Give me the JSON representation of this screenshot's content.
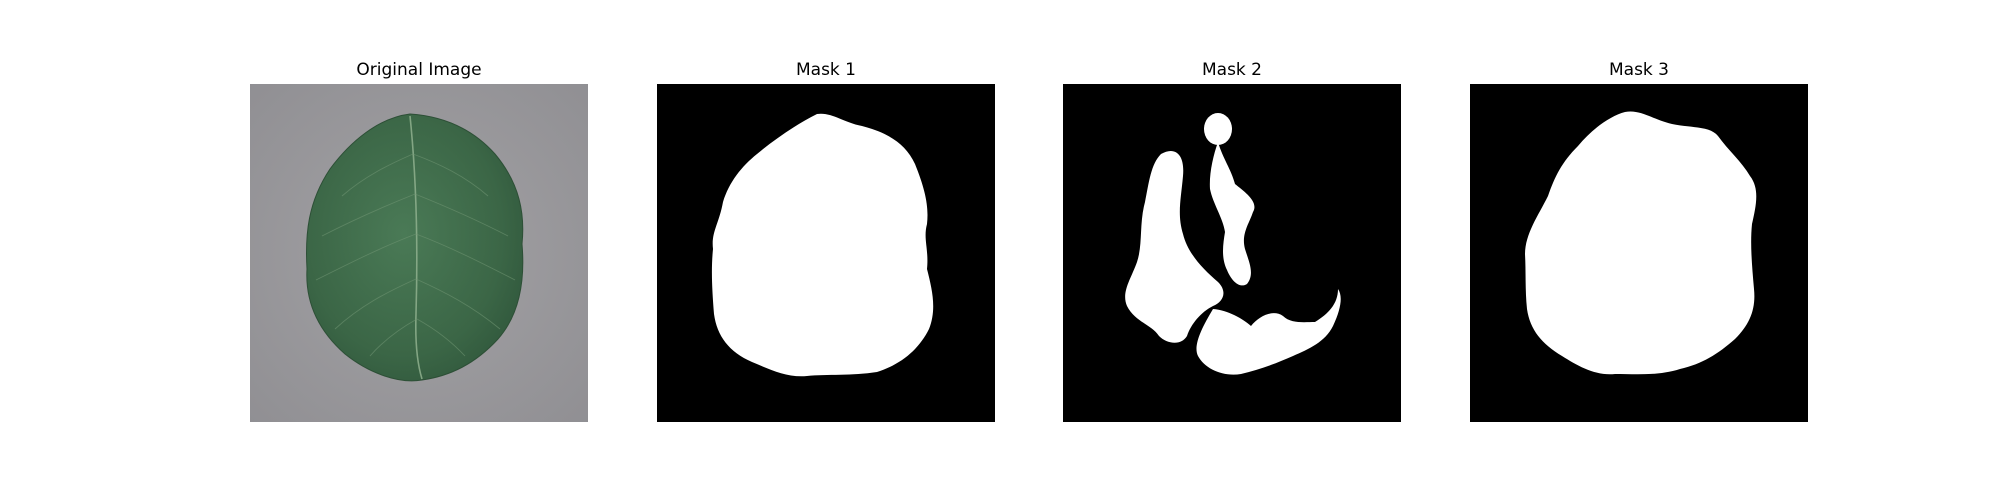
{
  "figure": {
    "panels": [
      {
        "title": "Original Image"
      },
      {
        "title": "Mask 1"
      },
      {
        "title": "Mask 2"
      },
      {
        "title": "Mask 3"
      }
    ]
  },
  "colors": {
    "background": "#ffffff",
    "mask_background": "#000000",
    "mask_foreground": "#ffffff",
    "leaf": "#3f6a48",
    "surface": "#9a9a9c"
  }
}
